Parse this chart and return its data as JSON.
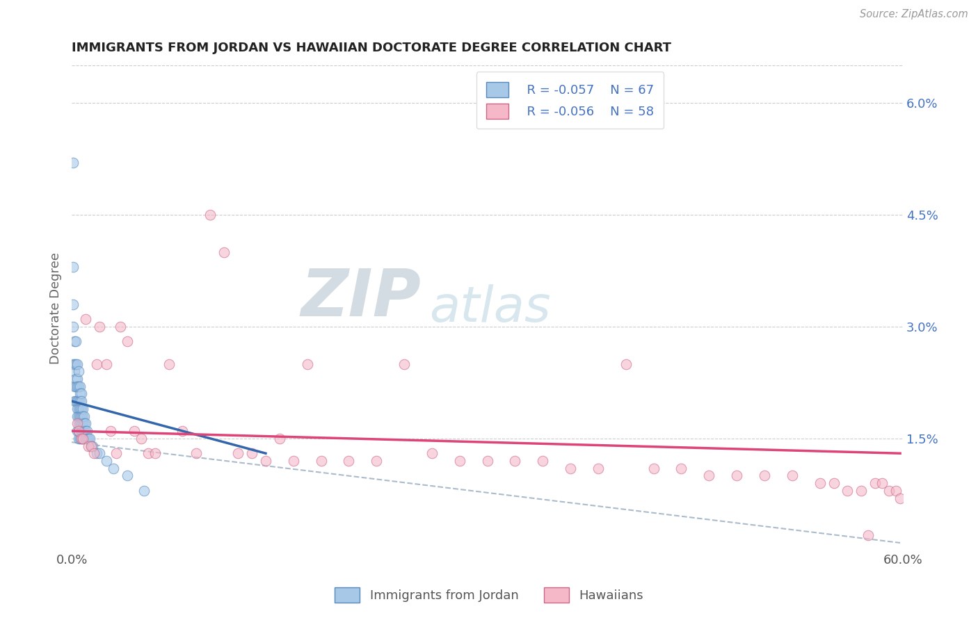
{
  "title": "IMMIGRANTS FROM JORDAN VS HAWAIIAN DOCTORATE DEGREE CORRELATION CHART",
  "source": "Source: ZipAtlas.com",
  "xlabel": "",
  "ylabel": "Doctorate Degree",
  "xlim": [
    0,
    0.6
  ],
  "ylim": [
    0,
    0.065
  ],
  "xticks": [
    0.0,
    0.1,
    0.2,
    0.3,
    0.4,
    0.5,
    0.6
  ],
  "xticklabels": [
    "0.0%",
    "",
    "",
    "",
    "",
    "",
    "60.0%"
  ],
  "yticks_right": [
    0.0,
    0.015,
    0.03,
    0.045,
    0.06
  ],
  "yticklabels_right": [
    "",
    "1.5%",
    "3.0%",
    "4.5%",
    "6.0%"
  ],
  "legend_r1": "R = -0.057",
  "legend_n1": "N = 67",
  "legend_r2": "R = -0.056",
  "legend_n2": "N = 58",
  "legend_label1": "Immigrants from Jordan",
  "legend_label2": "Hawaiians",
  "blue_color": "#a8c8e8",
  "pink_color": "#f4b8c8",
  "blue_edge_color": "#5588bb",
  "pink_edge_color": "#cc6688",
  "blue_line_color": "#3366aa",
  "pink_line_color": "#dd4477",
  "dashed_line_color": "#aabbcc",
  "title_color": "#222222",
  "watermark_zip": "ZIP",
  "watermark_atlas": "atlas",
  "blue_scatter_x": [
    0.001,
    0.001,
    0.001,
    0.001,
    0.001,
    0.002,
    0.002,
    0.002,
    0.002,
    0.002,
    0.003,
    0.003,
    0.003,
    0.003,
    0.003,
    0.004,
    0.004,
    0.004,
    0.004,
    0.004,
    0.004,
    0.004,
    0.005,
    0.005,
    0.005,
    0.005,
    0.005,
    0.005,
    0.005,
    0.005,
    0.006,
    0.006,
    0.006,
    0.006,
    0.006,
    0.006,
    0.006,
    0.007,
    0.007,
    0.007,
    0.007,
    0.007,
    0.007,
    0.007,
    0.008,
    0.008,
    0.008,
    0.008,
    0.008,
    0.009,
    0.009,
    0.009,
    0.01,
    0.01,
    0.01,
    0.011,
    0.011,
    0.012,
    0.013,
    0.014,
    0.015,
    0.018,
    0.02,
    0.025,
    0.03,
    0.04,
    0.052
  ],
  "blue_scatter_y": [
    0.052,
    0.038,
    0.033,
    0.03,
    0.025,
    0.028,
    0.025,
    0.024,
    0.022,
    0.02,
    0.028,
    0.025,
    0.023,
    0.022,
    0.02,
    0.025,
    0.023,
    0.022,
    0.02,
    0.019,
    0.018,
    0.016,
    0.024,
    0.022,
    0.02,
    0.019,
    0.018,
    0.017,
    0.016,
    0.015,
    0.022,
    0.021,
    0.02,
    0.019,
    0.018,
    0.017,
    0.015,
    0.021,
    0.02,
    0.019,
    0.018,
    0.017,
    0.016,
    0.015,
    0.019,
    0.018,
    0.017,
    0.016,
    0.015,
    0.018,
    0.017,
    0.016,
    0.017,
    0.016,
    0.015,
    0.016,
    0.015,
    0.015,
    0.015,
    0.014,
    0.014,
    0.013,
    0.013,
    0.012,
    0.011,
    0.01,
    0.008
  ],
  "pink_scatter_x": [
    0.004,
    0.005,
    0.007,
    0.008,
    0.01,
    0.012,
    0.014,
    0.016,
    0.018,
    0.02,
    0.025,
    0.028,
    0.032,
    0.035,
    0.04,
    0.045,
    0.05,
    0.055,
    0.06,
    0.07,
    0.08,
    0.09,
    0.1,
    0.11,
    0.12,
    0.13,
    0.14,
    0.15,
    0.16,
    0.17,
    0.18,
    0.2,
    0.22,
    0.24,
    0.26,
    0.28,
    0.3,
    0.32,
    0.34,
    0.36,
    0.38,
    0.4,
    0.42,
    0.44,
    0.46,
    0.48,
    0.5,
    0.52,
    0.54,
    0.55,
    0.56,
    0.57,
    0.575,
    0.58,
    0.585,
    0.59,
    0.595,
    0.598
  ],
  "pink_scatter_y": [
    0.017,
    0.016,
    0.015,
    0.015,
    0.031,
    0.014,
    0.014,
    0.013,
    0.025,
    0.03,
    0.025,
    0.016,
    0.013,
    0.03,
    0.028,
    0.016,
    0.015,
    0.013,
    0.013,
    0.025,
    0.016,
    0.013,
    0.045,
    0.04,
    0.013,
    0.013,
    0.012,
    0.015,
    0.012,
    0.025,
    0.012,
    0.012,
    0.012,
    0.025,
    0.013,
    0.012,
    0.012,
    0.012,
    0.012,
    0.011,
    0.011,
    0.025,
    0.011,
    0.011,
    0.01,
    0.01,
    0.01,
    0.01,
    0.009,
    0.009,
    0.008,
    0.008,
    0.002,
    0.009,
    0.009,
    0.008,
    0.008,
    0.007
  ],
  "blue_line_x": [
    0.0,
    0.14
  ],
  "blue_line_y": [
    0.02,
    0.013
  ],
  "pink_line_x": [
    0.0,
    0.598
  ],
  "pink_line_y": [
    0.016,
    0.013
  ],
  "dashed_line_x": [
    0.0,
    0.598
  ],
  "dashed_line_y": [
    0.0145,
    0.001
  ]
}
